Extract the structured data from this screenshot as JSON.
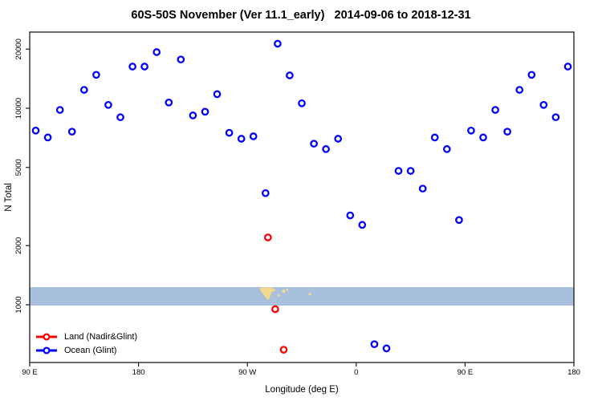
{
  "chart_data": {
    "type": "scatter",
    "title": "60S-50S November (Ver 11.1_early)   2014-09-06 to 2018-12-31",
    "xlabel": "Longitude (deg E)",
    "ylabel": "N Total",
    "x_axis": {
      "note": "axis position u in degrees along wrapped longitude axis: 90=90E, 180=180, 270=90W, 360=0, 450=90E, 540=180",
      "span": [
        90,
        540
      ],
      "ticks": [
        {
          "pos": 90,
          "label": "90 E"
        },
        {
          "pos": 180,
          "label": "180"
        },
        {
          "pos": 270,
          "label": "90 W"
        },
        {
          "pos": 360,
          "label": "0"
        },
        {
          "pos": 450,
          "label": "90 E"
        },
        {
          "pos": 540,
          "label": "180"
        }
      ]
    },
    "y_axis": {
      "scale": "log",
      "ticks": [
        "1000",
        "2000",
        "5000",
        "10000",
        "20000"
      ],
      "approx_range": [
        500,
        24500
      ]
    },
    "ocean_land_band": {
      "description": "horizontal strip showing ocean (blue) and land (tan) along longitude for the 60S-50S band",
      "value_top": 1230,
      "value_bottom": 990,
      "ocean_color": "#a9c0dd",
      "land_color": "#f3d88d",
      "land_patch_polygon": [
        [
          280.5,
          0.95
        ],
        [
          285,
          1.0
        ],
        [
          290,
          0.98
        ],
        [
          293.5,
          0.82
        ],
        [
          290,
          0.72
        ],
        [
          289,
          0.55
        ],
        [
          288,
          0.35
        ],
        [
          286.5,
          0.3
        ],
        [
          284.5,
          0.5
        ],
        [
          282,
          0.7
        ],
        [
          280.5,
          0.85
        ]
      ],
      "land_speckles": [
        {
          "u": 296,
          "frac": 0.55,
          "r": 1.5
        },
        {
          "u": 300,
          "frac": 0.78,
          "r": 2.0
        },
        {
          "u": 303,
          "frac": 0.86,
          "r": 1.5
        },
        {
          "u": 321.5,
          "frac": 0.62,
          "r": 1.5
        }
      ]
    },
    "series": [
      {
        "name": "Land (Nadir&Glint)",
        "color": "#ff0000",
        "marker": "open-circle",
        "points": [
          [
            287,
            2200
          ],
          [
            293,
            950
          ],
          [
            300,
            590
          ]
        ]
      },
      {
        "name": "Ocean (Glint)",
        "color": "#0000ff",
        "marker": "open-circle",
        "points": [
          [
            95,
            7700
          ],
          [
            105,
            7100
          ],
          [
            115,
            9800
          ],
          [
            125,
            7600
          ],
          [
            135,
            12400
          ],
          [
            145,
            14800
          ],
          [
            155,
            10400
          ],
          [
            165,
            9000
          ],
          [
            175,
            16300
          ],
          [
            185,
            16300
          ],
          [
            195,
            19300
          ],
          [
            205,
            10700
          ],
          [
            215,
            17700
          ],
          [
            225,
            9200
          ],
          [
            235,
            9600
          ],
          [
            245,
            11800
          ],
          [
            255,
            7500
          ],
          [
            265,
            7000
          ],
          [
            275,
            7200
          ],
          [
            285,
            3700
          ],
          [
            295,
            21300
          ],
          [
            305,
            14700
          ],
          [
            315,
            10600
          ],
          [
            325,
            6600
          ],
          [
            335,
            6200
          ],
          [
            345,
            7000
          ],
          [
            355,
            2850
          ],
          [
            365,
            2550
          ],
          [
            375,
            630
          ],
          [
            385,
            600
          ],
          [
            395,
            4800
          ],
          [
            405,
            4800
          ],
          [
            415,
            3900
          ],
          [
            425,
            7100
          ],
          [
            435,
            6200
          ],
          [
            445,
            2700
          ],
          [
            455,
            7700
          ],
          [
            465,
            7100
          ],
          [
            475,
            9800
          ],
          [
            485,
            7600
          ],
          [
            495,
            12400
          ],
          [
            505,
            14800
          ],
          [
            515,
            10400
          ],
          [
            525,
            9000
          ],
          [
            535,
            16300
          ]
        ]
      }
    ]
  }
}
